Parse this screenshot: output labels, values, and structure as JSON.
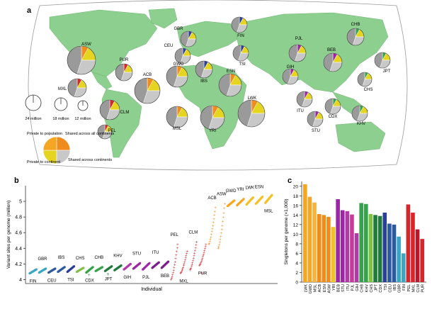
{
  "panels": {
    "a": "a",
    "b": "b",
    "c": "c"
  },
  "map": {
    "land_color": "#8ccf8e",
    "ocean_color": "#ffffff",
    "pie_colors": {
      "private_population": "#ffffff",
      "private_continent": "#e5d520",
      "shared_continents": "#c8c8c8",
      "shared_all": "#9a9a9a"
    },
    "populations": [
      {
        "code": "GBR",
        "accent": "#2c3f97"
      },
      {
        "code": "CEU",
        "accent": "#2c3f97"
      },
      {
        "code": "FIN",
        "accent": "#2c3f97"
      },
      {
        "code": "TSI",
        "accent": "#2c3f97"
      },
      {
        "code": "IBS",
        "accent": "#2c3f97"
      },
      {
        "code": "PJL",
        "accent": "#9b27a6"
      },
      {
        "code": "GIH",
        "accent": "#9b27a6"
      },
      {
        "code": "BEB",
        "accent": "#9b27a6"
      },
      {
        "code": "ITU",
        "accent": "#9b27a6"
      },
      {
        "code": "STU",
        "accent": "#9b27a6"
      },
      {
        "code": "CHB",
        "accent": "#34a44a"
      },
      {
        "code": "JPT",
        "accent": "#34a44a"
      },
      {
        "code": "CHS",
        "accent": "#34a44a"
      },
      {
        "code": "CDX",
        "accent": "#34a44a"
      },
      {
        "code": "KHV",
        "accent": "#34a44a"
      },
      {
        "code": "ASW",
        "accent": "#f08c1e"
      },
      {
        "code": "ACB",
        "accent": "#f08c1e"
      },
      {
        "code": "GWD",
        "accent": "#f08c1e"
      },
      {
        "code": "ESN",
        "accent": "#f08c1e"
      },
      {
        "code": "LWK",
        "accent": "#f08c1e"
      },
      {
        "code": "MSL",
        "accent": "#f08c1e"
      },
      {
        "code": "YRI",
        "accent": "#f08c1e"
      },
      {
        "code": "PUR",
        "accent": "#d7262b"
      },
      {
        "code": "MXL",
        "accent": "#d7262b"
      },
      {
        "code": "CLM",
        "accent": "#d7262b"
      },
      {
        "code": "PEL",
        "accent": "#d7262b"
      }
    ],
    "size_legend": [
      "24 million",
      "18 million",
      "12 million"
    ],
    "pie_legend": {
      "private_population": "Private to population",
      "shared_all": "Shared across all continents",
      "private_continent": "Private to continent",
      "shared_continents": "Shared across continents"
    }
  },
  "chart_data": [
    {
      "type": "scatter",
      "panel": "b",
      "title": "",
      "xlabel": "Individual",
      "ylabel": "Variant sites per genome (million)",
      "ylim": [
        3.95,
        5.2
      ],
      "yticks": [
        4,
        4.2,
        4.4,
        4.6,
        4.8,
        5
      ],
      "grid": false,
      "series": [
        {
          "name": "FIN",
          "color": "#3aa6c4",
          "values": [
            4.08,
            4.13
          ]
        },
        {
          "name": "GBR",
          "color": "#3aa6c4",
          "values": [
            4.09,
            4.14
          ]
        },
        {
          "name": "CEU",
          "color": "#2c5aa0",
          "values": [
            4.09,
            4.14
          ]
        },
        {
          "name": "IBS",
          "color": "#2c5aa0",
          "values": [
            4.1,
            4.16
          ]
        },
        {
          "name": "TSI",
          "color": "#2c3f97",
          "values": [
            4.1,
            4.17
          ]
        },
        {
          "name": "CHS",
          "color": "#7fc241",
          "values": [
            4.1,
            4.15
          ]
        },
        {
          "name": "CDX",
          "color": "#34a44a",
          "values": [
            4.09,
            4.16
          ]
        },
        {
          "name": "CHB",
          "color": "#34a44a",
          "values": [
            4.11,
            4.16
          ]
        },
        {
          "name": "JPT",
          "color": "#1f7a3c",
          "values": [
            4.11,
            4.17
          ]
        },
        {
          "name": "KHV",
          "color": "#1f7a3c",
          "values": [
            4.12,
            4.18
          ]
        },
        {
          "name": "GIH",
          "color": "#b23aa6",
          "values": [
            4.13,
            4.2
          ]
        },
        {
          "name": "STU",
          "color": "#9b27a6",
          "values": [
            4.14,
            4.21
          ]
        },
        {
          "name": "PJL",
          "color": "#9b27a6",
          "values": [
            4.13,
            4.21
          ]
        },
        {
          "name": "ITU",
          "color": "#7b1f8a",
          "values": [
            4.15,
            4.22
          ]
        },
        {
          "name": "BEB",
          "color": "#7b1f8a",
          "values": [
            4.15,
            4.23
          ]
        },
        {
          "name": "PEL",
          "color": "#d7262b",
          "values": [
            4.0,
            4.45
          ]
        },
        {
          "name": "MXL",
          "color": "#d7262b",
          "values": [
            4.08,
            4.36
          ]
        },
        {
          "name": "CLM",
          "color": "#d7262b",
          "values": [
            4.12,
            4.48
          ]
        },
        {
          "name": "PUR",
          "color": "#d7262b",
          "values": [
            4.18,
            4.45
          ]
        },
        {
          "name": "ACB",
          "color": "#f08c1e",
          "values": [
            4.45,
            4.92
          ]
        },
        {
          "name": "ASW",
          "color": "#f08c1e",
          "values": [
            4.4,
            4.97
          ]
        },
        {
          "name": "GWD",
          "color": "#f5a623",
          "values": [
            4.94,
            5.01
          ]
        },
        {
          "name": "YRI",
          "color": "#f5a623",
          "values": [
            4.95,
            5.03
          ]
        },
        {
          "name": "LWK",
          "color": "#f5c023",
          "values": [
            4.96,
            5.05
          ]
        },
        {
          "name": "ESN",
          "color": "#f5c023",
          "values": [
            4.97,
            5.06
          ]
        },
        {
          "name": "MSL",
          "color": "#f5c023",
          "values": [
            4.98,
            5.08
          ]
        }
      ],
      "outliers": [
        {
          "series": "CDX",
          "value": 4.06
        },
        {
          "series": "JPT",
          "value": 4.07
        },
        {
          "series": "PUR",
          "value": 4.08
        }
      ]
    },
    {
      "type": "bar",
      "panel": "c",
      "title": "",
      "xlabel": "",
      "ylabel": "Singletons per genome (×1,000)",
      "ylim": [
        0,
        21
      ],
      "yticks": [
        0,
        2,
        4,
        6,
        8,
        10,
        12,
        14,
        16,
        18,
        20
      ],
      "grid": false,
      "categories": [
        "LWK",
        "GWD",
        "MSL",
        "ACB",
        "ESN",
        "ASW",
        "YRI",
        "BEB",
        "STU",
        "ITU",
        "PJL",
        "GIH",
        "CHB",
        "KHV",
        "CHS",
        "JPT",
        "CDX",
        "TSI",
        "CEU",
        "IBS",
        "GBR",
        "FIN",
        "PEL",
        "MXL",
        "CLM",
        "PUR"
      ],
      "values": [
        20.4,
        17.8,
        16.6,
        14.2,
        14.0,
        13.6,
        11.5,
        17.3,
        15.0,
        14.8,
        14.1,
        10.2,
        16.5,
        16.3,
        14.2,
        14.0,
        13.8,
        14.5,
        12.2,
        12.0,
        9.5,
        6.0,
        16.2,
        14.5,
        11.0,
        9.0
      ],
      "colors": [
        "#f5a623",
        "#f5a623",
        "#f5b43a",
        "#f08c1e",
        "#f08c1e",
        "#f08c1e",
        "#f5c023",
        "#9b27a6",
        "#9b27a6",
        "#b23aa6",
        "#c43b9a",
        "#b23aa6",
        "#34a44a",
        "#34a44a",
        "#7fc241",
        "#1f7a3c",
        "#1f7a3c",
        "#2c3f97",
        "#2c5aa0",
        "#2c5aa0",
        "#3aa6c4",
        "#3aa6c4",
        "#d7262b",
        "#d7262b",
        "#b7192a",
        "#d7262b"
      ]
    }
  ]
}
